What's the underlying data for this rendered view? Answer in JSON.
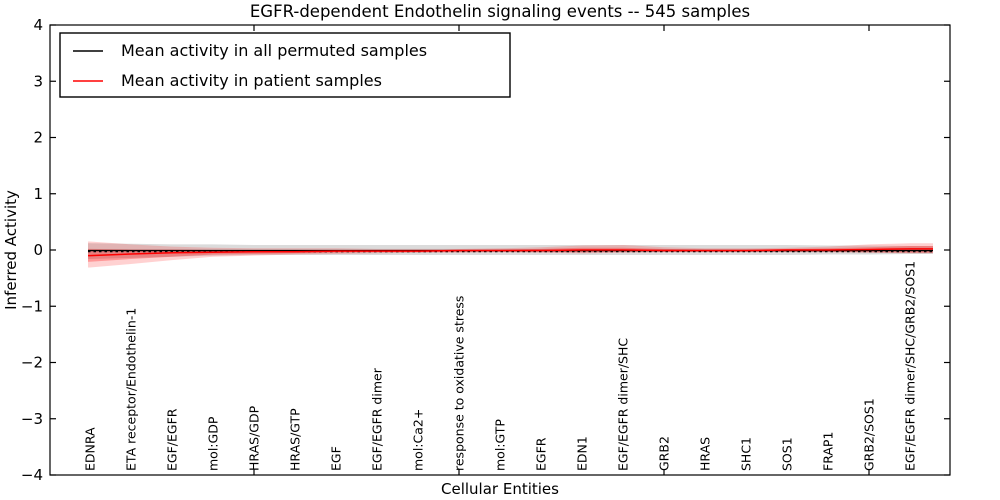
{
  "figure": {
    "title": "EGFR-dependent Endothelin signaling events -- 545 samples",
    "xlabel": "Cellular Entities",
    "ylabel": "Inferred Activity"
  },
  "chart_data": {
    "type": "line",
    "title": "EGFR-dependent Endothelin signaling events -- 545 samples",
    "xlabel": "Cellular Entities",
    "ylabel": "Inferred Activity",
    "ylim": [
      -4,
      4
    ],
    "yticks": [
      4,
      3,
      2,
      1,
      0,
      -1,
      -2,
      -3,
      -4
    ],
    "x_major_tick_indices": [
      4,
      9,
      14,
      19
    ],
    "grid": false,
    "legend_position": "upper left",
    "background_color": "#ffffff",
    "categories": [
      "EDNRA",
      "ETA receptor/Endothelin-1",
      "EGF/EGFR",
      "mol:GDP",
      "HRAS/GDP",
      "HRAS/GTP",
      "EGF",
      "EGF/EGFR dimer",
      "mol:Ca2+",
      "response to oxidative stress",
      "mol:GTP",
      "EGFR",
      "EDN1",
      "EGF/EGFR dimer/SHC",
      "GRB2",
      "HRAS",
      "SHC1",
      "SOS1",
      "FRAP1",
      "GRB2/SOS1",
      "EGF/EGFR dimer/SHC/GRB2/SOS1"
    ],
    "zero_line": {
      "y": -0.03,
      "style": "dashed",
      "color": "#000000"
    },
    "series": [
      {
        "name": "Mean activity in all permuted samples",
        "color": "#000000",
        "values": [
          -0.01,
          -0.01,
          -0.01,
          -0.01,
          -0.01,
          -0.01,
          -0.01,
          -0.01,
          -0.01,
          -0.01,
          -0.01,
          -0.01,
          -0.01,
          -0.01,
          -0.01,
          -0.01,
          -0.01,
          -0.01,
          -0.01,
          -0.01,
          -0.01
        ],
        "band": {
          "upper": [
            0.12,
            0.11,
            0.1,
            0.1,
            0.09,
            0.09,
            0.09,
            0.09,
            0.09,
            0.09,
            0.09,
            0.09,
            0.09,
            0.09,
            0.09,
            0.09,
            0.09,
            0.09,
            0.08,
            0.08,
            0.07
          ],
          "lower": [
            -0.16,
            -0.14,
            -0.12,
            -0.1,
            -0.09,
            -0.09,
            -0.09,
            -0.09,
            -0.09,
            -0.09,
            -0.09,
            -0.09,
            -0.09,
            -0.09,
            -0.09,
            -0.09,
            -0.09,
            -0.09,
            -0.08,
            -0.08,
            -0.07
          ],
          "color": "#999999",
          "opacity": 0.35
        }
      },
      {
        "name": "Mean activity in patient samples",
        "color": "#ff0000",
        "values": [
          -0.1,
          -0.07,
          -0.05,
          -0.04,
          -0.03,
          -0.03,
          -0.02,
          -0.02,
          -0.02,
          -0.01,
          -0.01,
          -0.01,
          0.0,
          0.0,
          -0.01,
          -0.01,
          -0.01,
          0.0,
          0.0,
          0.01,
          0.02
        ],
        "band_outer": {
          "upper": [
            0.15,
            0.1,
            0.06,
            0.04,
            0.03,
            0.03,
            0.03,
            0.02,
            0.02,
            0.02,
            0.03,
            0.05,
            0.08,
            0.09,
            0.05,
            0.03,
            0.03,
            0.04,
            0.06,
            0.1,
            0.12
          ],
          "lower": [
            -0.31,
            -0.25,
            -0.18,
            -0.12,
            -0.1,
            -0.08,
            -0.07,
            -0.06,
            -0.05,
            -0.05,
            -0.04,
            -0.05,
            -0.06,
            -0.05,
            -0.04,
            -0.04,
            -0.04,
            -0.04,
            -0.04,
            -0.05,
            -0.06
          ],
          "color": "#ff0000",
          "opacity": 0.18
        },
        "band_inner": {
          "upper": [
            0.02,
            0.01,
            0.01,
            0.0,
            0.0,
            0.0,
            0.0,
            0.0,
            0.0,
            0.0,
            0.01,
            0.02,
            0.04,
            0.04,
            0.02,
            0.01,
            0.01,
            0.02,
            0.03,
            0.05,
            0.07
          ],
          "lower": [
            -0.21,
            -0.16,
            -0.12,
            -0.08,
            -0.07,
            -0.06,
            -0.05,
            -0.04,
            -0.04,
            -0.03,
            -0.03,
            -0.03,
            -0.04,
            -0.03,
            -0.03,
            -0.03,
            -0.03,
            -0.03,
            -0.03,
            -0.04,
            -0.05
          ],
          "color": "#ff0000",
          "opacity": 0.28
        }
      }
    ]
  },
  "legend": {
    "entries": [
      {
        "label": "Mean activity in all permuted samples",
        "color": "#000000"
      },
      {
        "label": "Mean activity in patient samples",
        "color": "#ff0000"
      }
    ]
  }
}
